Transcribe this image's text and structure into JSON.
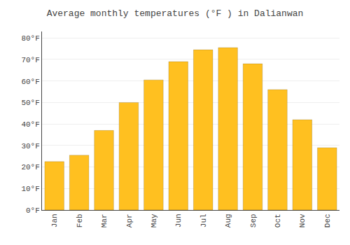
{
  "chart_data": {
    "type": "bar",
    "title": "Average monthly temperatures (°F ) in Dalianwan",
    "categories": [
      "Jan",
      "Feb",
      "Mar",
      "Apr",
      "May",
      "Jun",
      "Jul",
      "Aug",
      "Sep",
      "Oct",
      "Nov",
      "Dec"
    ],
    "values": [
      22.5,
      25.5,
      37,
      50,
      60.5,
      69,
      74.5,
      75.5,
      68,
      56,
      42,
      29
    ],
    "color": "#FFC020",
    "ylim": [
      0,
      83
    ],
    "yticks": [
      {
        "value": 0,
        "label": "0°F"
      },
      {
        "value": 10,
        "label": "10°F"
      },
      {
        "value": 20,
        "label": "20°F"
      },
      {
        "value": 30,
        "label": "30°F"
      },
      {
        "value": 40,
        "label": "40°F"
      },
      {
        "value": 50,
        "label": "50°F"
      },
      {
        "value": 60,
        "label": "60°F"
      },
      {
        "value": 70,
        "label": "70°F"
      },
      {
        "value": 80,
        "label": "80°F"
      }
    ],
    "grid": true
  }
}
